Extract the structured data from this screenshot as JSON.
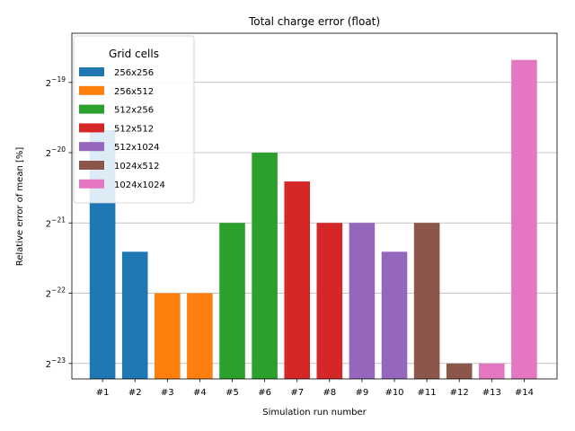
{
  "chart_data": {
    "type": "bar",
    "title": "Total charge error (float)",
    "xlabel": "Simulation run number",
    "ylabel": "Relative error of mean [%]",
    "yscale": "log2",
    "yticks_exponent": [
      -23,
      -22,
      -21,
      -20,
      -19
    ],
    "ylim_exponent": [
      -23.22,
      -18.3
    ],
    "grid": "y",
    "legend": {
      "title": "Grid cells",
      "placement": "top-left",
      "entries": [
        {
          "label": "256x256",
          "color": "#1f77b4"
        },
        {
          "label": "256x512",
          "color": "#ff7f0e"
        },
        {
          "label": "512x256",
          "color": "#2ca02c"
        },
        {
          "label": "512x512",
          "color": "#d62728"
        },
        {
          "label": "512x1024",
          "color": "#9467bd"
        },
        {
          "label": "1024x512",
          "color": "#8c564b"
        },
        {
          "label": "1024x1024",
          "color": "#e377c2"
        }
      ]
    },
    "categories": [
      "#1",
      "#2",
      "#3",
      "#4",
      "#5",
      "#6",
      "#7",
      "#8",
      "#9",
      "#10",
      "#11",
      "#12",
      "#13",
      "#14"
    ],
    "values_exponent": [
      -19.68,
      -21.41,
      -22.0,
      -22.0,
      -21.0,
      -20.0,
      -20.41,
      -21.0,
      -21.0,
      -21.41,
      -21.0,
      -23.0,
      -23.0,
      -18.68
    ],
    "bar_groups": [
      0,
      0,
      1,
      1,
      2,
      2,
      3,
      3,
      4,
      4,
      5,
      5,
      6,
      6
    ]
  }
}
